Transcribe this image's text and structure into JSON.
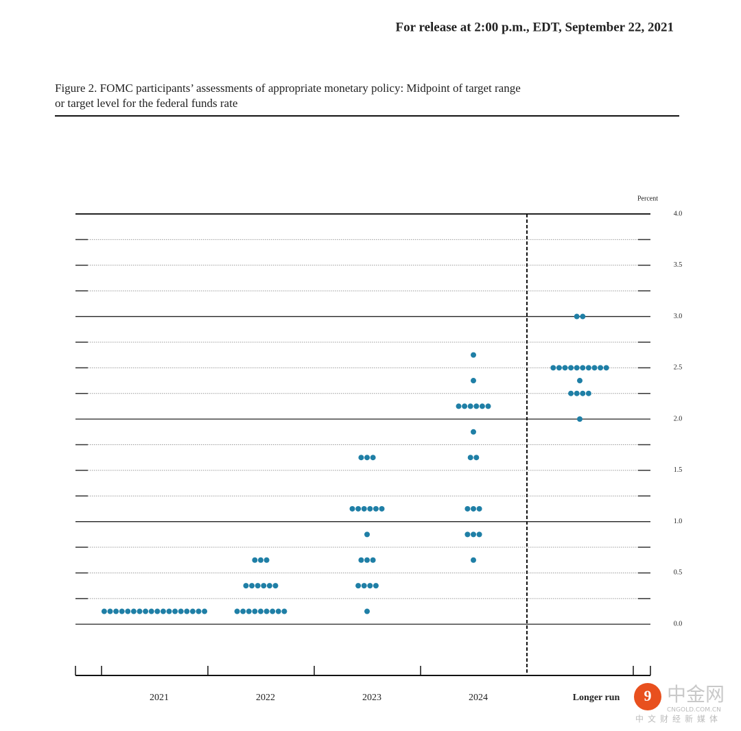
{
  "header": "For release at 2:00 p.m., EDT, September 22, 2021",
  "watermark": {
    "brand": "中金网",
    "domain": "CNGOLD.COM.CN",
    "tagline": "中文财经新媒体"
  },
  "chart_data": {
    "type": "dot",
    "title": [
      "Figure 2.  FOMC participants’ assessments of appropriate monetary policy:  Midpoint of target range",
      "or target level for the federal funds rate"
    ],
    "y_label": "Percent",
    "color": "#1f7fa6",
    "categories": [
      "2021",
      "2022",
      "2023",
      "2024",
      "Longer run"
    ],
    "values": [
      [
        0.125,
        0.125,
        0.125,
        0.125,
        0.125,
        0.125,
        0.125,
        0.125,
        0.125,
        0.125,
        0.125,
        0.125,
        0.125,
        0.125,
        0.125,
        0.125,
        0.125,
        0.125
      ],
      [
        0.625,
        0.625,
        0.625,
        0.375,
        0.375,
        0.375,
        0.375,
        0.375,
        0.375,
        0.125,
        0.125,
        0.125,
        0.125,
        0.125,
        0.125,
        0.125,
        0.125,
        0.125
      ],
      [
        1.625,
        1.625,
        1.625,
        1.125,
        1.125,
        1.125,
        1.125,
        1.125,
        1.125,
        0.875,
        0.625,
        0.625,
        0.625,
        0.375,
        0.375,
        0.375,
        0.375,
        0.125
      ],
      [
        2.625,
        2.375,
        2.125,
        2.125,
        2.125,
        2.125,
        2.125,
        2.125,
        1.875,
        1.625,
        1.625,
        1.125,
        1.125,
        1.125,
        0.875,
        0.875,
        0.875,
        0.625
      ],
      [
        3.0,
        3.0,
        2.5,
        2.5,
        2.5,
        2.5,
        2.5,
        2.5,
        2.5,
        2.5,
        2.5,
        2.5,
        2.375,
        2.25,
        2.25,
        2.25,
        2.25,
        2.0
      ]
    ],
    "ylim": [
      -0.5,
      4.0
    ],
    "yticks": [
      {
        "value": 0,
        "label": "0.0"
      },
      {
        "value": 0.5,
        "label": "0.5"
      },
      {
        "value": 1,
        "label": "1.0"
      },
      {
        "value": 1.5,
        "label": "1.5"
      },
      {
        "value": 2,
        "label": "2.0"
      },
      {
        "value": 2.5,
        "label": "2.5"
      },
      {
        "value": 3,
        "label": "3.0"
      },
      {
        "value": 3.5,
        "label": "3.5"
      },
      {
        "value": 4,
        "label": "4.0"
      }
    ],
    "minor_yticks": [
      0.25,
      0.75,
      1.25,
      1.75,
      2.25,
      2.75,
      3.25,
      3.75
    ]
  }
}
